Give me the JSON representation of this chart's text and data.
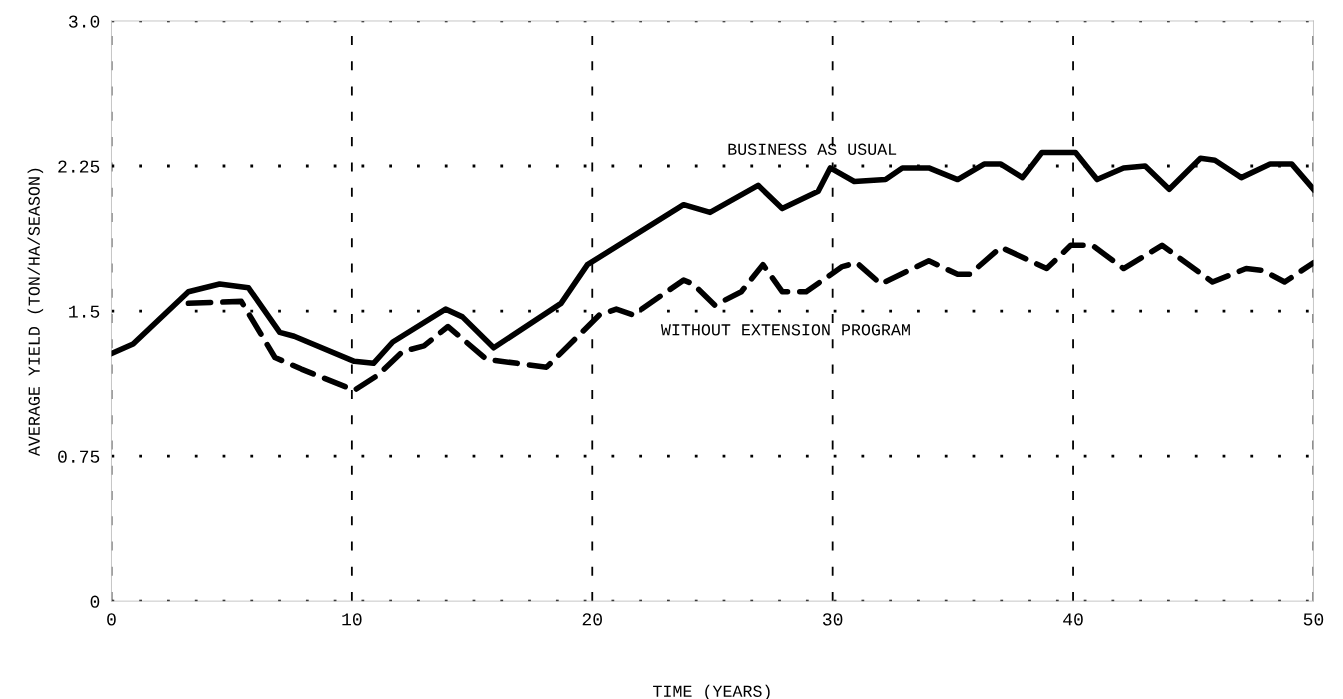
{
  "chart_data": {
    "type": "line",
    "xlabel": "TIME (YEARS)",
    "ylabel": "AVERAGE YIELD (TON/HA/SEASON)",
    "xlim": [
      0,
      50
    ],
    "xticks": [
      0,
      10,
      20,
      30,
      40,
      50
    ],
    "ylim": [
      0,
      3.0
    ],
    "yticks": [
      0,
      0.75,
      1.5,
      2.25,
      {
        "value": 3.0,
        "label": "3.0"
      }
    ],
    "grid": true,
    "marker": "none",
    "series": [
      {
        "name": "BUSINESS AS USUAL",
        "color": "#000000",
        "line_style": "solid",
        "x": [
          0,
          0.9,
          3.2,
          4.5,
          5.7,
          7.0,
          7.6,
          10.1,
          10.9,
          11.7,
          13.9,
          14.6,
          15.9,
          18.7,
          19.8,
          23.8,
          24.9,
          26.9,
          27.9,
          29.4,
          29.9,
          30.9,
          32.2,
          32.9,
          34.0,
          35.2,
          36.3,
          37.0,
          37.9,
          38.7,
          40.1,
          41.0,
          42.1,
          43.0,
          44.0,
          45.3,
          45.9,
          47.0,
          48.2,
          49.1,
          50.0
        ],
        "values": [
          1.28,
          1.33,
          1.6,
          1.64,
          1.62,
          1.39,
          1.37,
          1.24,
          1.23,
          1.34,
          1.51,
          1.47,
          1.31,
          1.54,
          1.74,
          2.05,
          2.01,
          2.15,
          2.03,
          2.12,
          2.24,
          2.17,
          2.18,
          2.24,
          2.24,
          2.18,
          2.26,
          2.26,
          2.19,
          2.32,
          2.32,
          2.18,
          2.24,
          2.25,
          2.13,
          2.29,
          2.28,
          2.19,
          2.26,
          2.26,
          2.13
        ]
      },
      {
        "name": "WITHOUT EXTENSION PROGRAM",
        "color": "#000000",
        "line_style": "dashed",
        "x": [
          3.2,
          5.4,
          6.8,
          7.9,
          10.1,
          11.1,
          12.1,
          13.0,
          14.0,
          15.6,
          18.1,
          20.3,
          21.0,
          21.7,
          23.8,
          24.2,
          25.1,
          26.2,
          27.1,
          27.9,
          28.9,
          30.4,
          31.0,
          32.0,
          34.0,
          35.2,
          35.7,
          37.0,
          38.9,
          39.9,
          40.8,
          42.1,
          43.7,
          45.8,
          47.2,
          47.9,
          48.8,
          50.0
        ],
        "values": [
          1.54,
          1.55,
          1.26,
          1.2,
          1.09,
          1.17,
          1.29,
          1.32,
          1.42,
          1.25,
          1.21,
          1.48,
          1.51,
          1.48,
          1.66,
          1.64,
          1.53,
          1.6,
          1.74,
          1.6,
          1.6,
          1.73,
          1.75,
          1.64,
          1.76,
          1.69,
          1.69,
          1.83,
          1.72,
          1.84,
          1.84,
          1.72,
          1.84,
          1.65,
          1.72,
          1.71,
          1.65,
          1.75
        ]
      }
    ]
  }
}
